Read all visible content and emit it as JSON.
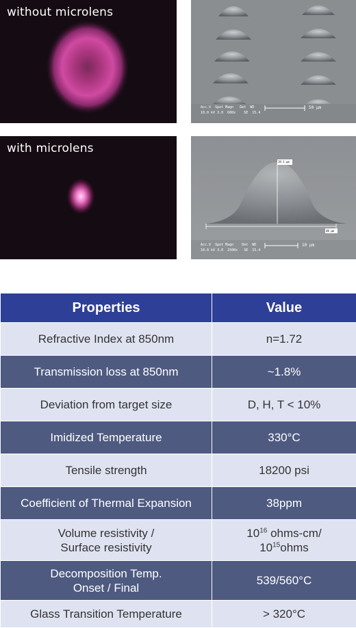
{
  "panels": {
    "without": {
      "label": "without microlens"
    },
    "with": {
      "label": "with microlens"
    },
    "sem_top": {
      "header": "Acc.V  Spot Magn   Det  WD",
      "values": "10.0 kV 3.0  600x    SE  15.4",
      "scale": "50 μm"
    },
    "sem_bottom": {
      "height_label": "19.1 μm",
      "width_label": "48 μm",
      "header": "Acc.V  Spot Magn    Det  WD",
      "values": "10.0 kV 3.0  2500x   SE  15.4",
      "scale": "10 μm"
    }
  },
  "table": {
    "headers": [
      "Properties",
      "Value"
    ],
    "rows": [
      {
        "property": "Refractive Index at 850nm",
        "value": "n=1.72"
      },
      {
        "property": "Transmission loss at 850nm",
        "value": "~1.8%"
      },
      {
        "property": "Deviation from target size",
        "value": "D, H, T < 10%"
      },
      {
        "property": "Imidized Temperature",
        "value": "330°C"
      },
      {
        "property": "Tensile strength",
        "value": "18200 psi"
      },
      {
        "property": "Coefficient of Thermal Expansion",
        "value": "38ppm"
      },
      {
        "property_line1": "Volume resistivity /",
        "property_line2": "Surface resistivity",
        "value_base1": "10",
        "value_exp1": "16",
        "value_rest1": " ohms-cm/",
        "value_base2": "10",
        "value_exp2": "15",
        "value_rest2": "ohms"
      },
      {
        "property_line1": "Decomposition Temp.",
        "property_line2": "Onset / Final",
        "value": "539/560°C"
      },
      {
        "property": "Glass Transition Temperature",
        "value": "> 320°C"
      }
    ]
  }
}
